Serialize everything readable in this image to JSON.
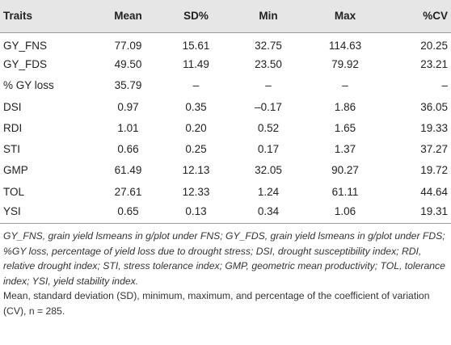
{
  "table": {
    "headers": [
      "Traits",
      "Mean",
      "SD%",
      "Min",
      "Max",
      "%CV"
    ],
    "rows": [
      [
        "GY_FNS",
        "77.09",
        "15.61",
        "32.75",
        "114.63",
        "20.25"
      ],
      [
        "GY_FDS",
        "49.50",
        "11.49",
        "23.50",
        "79.92",
        "23.21"
      ],
      [
        "% GY loss",
        "35.79",
        "–",
        "–",
        "–",
        "–"
      ],
      [
        "DSI",
        "0.97",
        "0.35",
        "–0.17",
        "1.86",
        "36.05"
      ],
      [
        "RDI",
        "1.01",
        "0.20",
        "0.52",
        "1.65",
        "19.33"
      ],
      [
        "STI",
        "0.66",
        "0.25",
        "0.17",
        "1.37",
        "37.27"
      ],
      [
        "GMP",
        "61.49",
        "12.13",
        "32.05",
        "90.27",
        "19.72"
      ],
      [
        "TOL",
        "27.61",
        "12.33",
        "1.24",
        "61.11",
        "44.64"
      ],
      [
        "YSI",
        "0.65",
        "0.13",
        "0.34",
        "1.06",
        "19.31"
      ]
    ]
  },
  "footnote": {
    "abbreviations": "GY_FNS, grain yield lsmeans in g/plot under FNS; GY_FDS, grain yield lsmeans in g/plot under FDS; %GY loss, percentage of yield loss due to drought stress; DSI, drought susceptibility index; RDI, relative drought index; STI, stress tolerance index; GMP, geometric mean productivity; TOL, tolerance index; YSI, yield stability index.",
    "description": "Mean, standard deviation (SD), minimum, maximum, and percentage of the coefficient of variation (CV), n = 285."
  }
}
